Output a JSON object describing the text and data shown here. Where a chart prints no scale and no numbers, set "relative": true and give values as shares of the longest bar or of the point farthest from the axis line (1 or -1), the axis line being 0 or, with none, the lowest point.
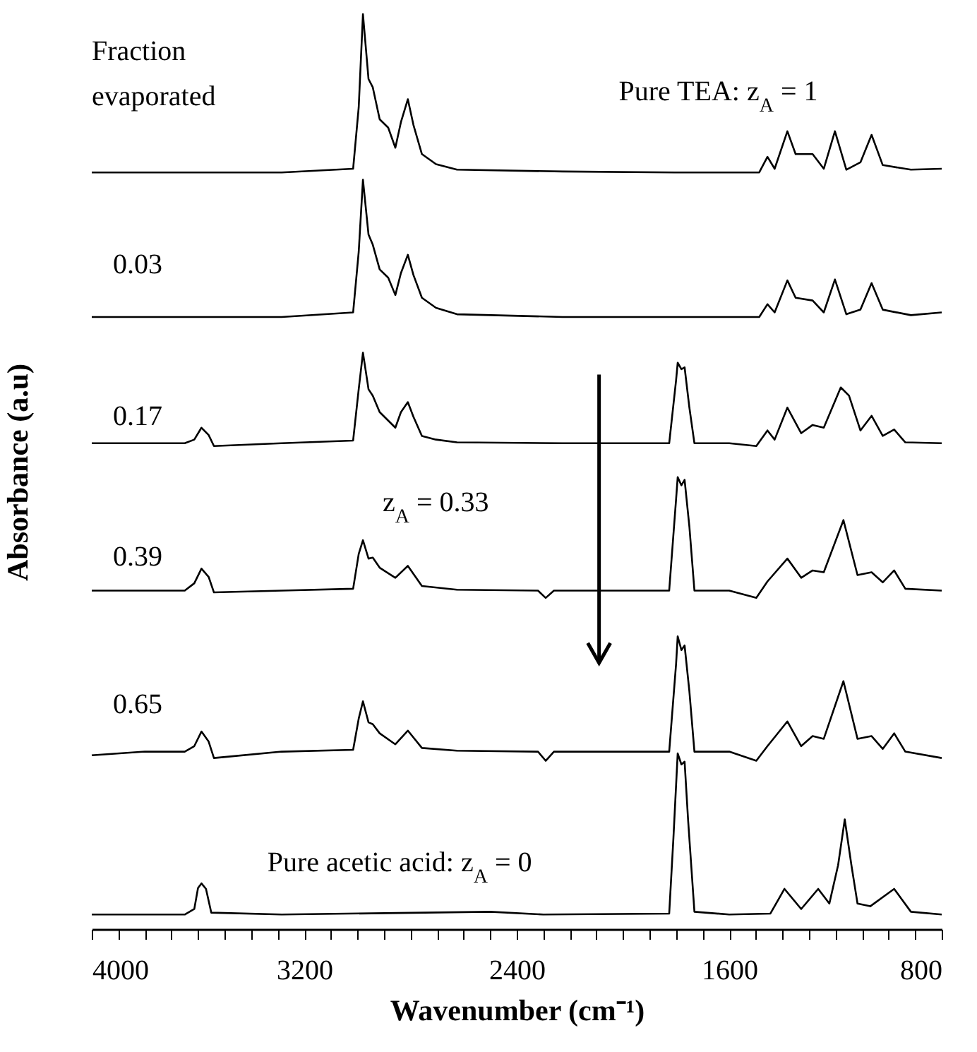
{
  "chart_data": {
    "type": "line",
    "relative": true,
    "xlabel": "Wavenumber (cm⁻¹)",
    "ylabel": "Absorbance  (a.u)",
    "xlim": [
      4000,
      800
    ],
    "xticks": [
      4000,
      {
        "value": 3900,
        "label": null
      },
      {
        "value": 3800,
        "label": null
      },
      {
        "value": 3700,
        "label": null
      },
      {
        "value": 3600,
        "label": null
      },
      {
        "value": 3500,
        "label": null
      },
      {
        "value": 3400,
        "label": null
      },
      {
        "value": 3300,
        "label": null
      },
      3200,
      {
        "value": 3100,
        "label": null
      },
      {
        "value": 3000,
        "label": null
      },
      {
        "value": 2900,
        "label": null
      },
      {
        "value": 2800,
        "label": null
      },
      {
        "value": 2700,
        "label": null
      },
      {
        "value": 2600,
        "label": null
      },
      {
        "value": 2500,
        "label": null
      },
      2400,
      {
        "value": 2300,
        "label": null
      },
      {
        "value": 2200,
        "label": null
      },
      {
        "value": 2100,
        "label": null
      },
      {
        "value": 2000,
        "label": null
      },
      {
        "value": 1900,
        "label": null
      },
      {
        "value": 1800,
        "label": null
      },
      {
        "value": 1700,
        "label": null
      },
      1600,
      {
        "value": 1500,
        "label": null
      },
      {
        "value": 1400,
        "label": null
      },
      {
        "value": 1300,
        "label": null
      },
      {
        "value": 1200,
        "label": null
      },
      {
        "value": 1100,
        "label": null
      },
      {
        "value": 1000,
        "label": null
      },
      {
        "value": 900,
        "label": null
      },
      800
    ],
    "annotations": [
      "Fraction evaporated",
      "z$_{A}$ = 0.33"
    ],
    "series": [
      {
        "name": "Pure TEA: z$_{A}$ = 1",
        "color": "#000000",
        "x": [
          4000,
          3285,
          3016,
          2995,
          2979,
          2958,
          2942,
          2916,
          2884,
          2857,
          2836,
          2810,
          2789,
          2757,
          2704,
          2625,
          2228,
          1805,
          1487,
          1456,
          1429,
          1381,
          1350,
          1286,
          1244,
          1202,
          1159,
          1106,
          1064,
          1022,
          916,
          800
        ],
        "values": [
          0.827,
          0.827,
          0.831,
          0.898,
          1.0,
          0.929,
          0.92,
          0.885,
          0.876,
          0.854,
          0.882,
          0.907,
          0.879,
          0.847,
          0.836,
          0.83,
          0.828,
          0.827,
          0.827,
          0.844,
          0.831,
          0.872,
          0.847,
          0.847,
          0.831,
          0.872,
          0.83,
          0.838,
          0.868,
          0.835,
          0.83,
          0.831
        ]
      },
      {
        "name": "0.03",
        "color": "#000000",
        "x": [
          4000,
          3285,
          3016,
          2995,
          2979,
          2958,
          2942,
          2916,
          2884,
          2857,
          2836,
          2810,
          2789,
          2757,
          2704,
          2625,
          2228,
          1805,
          1487,
          1456,
          1429,
          1381,
          1350,
          1286,
          1244,
          1202,
          1159,
          1106,
          1064,
          1022,
          916,
          800
        ],
        "values": [
          0.669,
          0.669,
          0.674,
          0.74,
          0.819,
          0.759,
          0.748,
          0.721,
          0.712,
          0.693,
          0.717,
          0.737,
          0.715,
          0.69,
          0.679,
          0.672,
          0.669,
          0.669,
          0.669,
          0.683,
          0.674,
          0.709,
          0.69,
          0.687,
          0.674,
          0.71,
          0.672,
          0.677,
          0.706,
          0.677,
          0.671,
          0.674
        ]
      },
      {
        "name": "0.17",
        "color": "#000000",
        "x": [
          4000,
          3650,
          3614,
          3587,
          3560,
          3540,
          3285,
          3016,
          2995,
          2979,
          2958,
          2942,
          2916,
          2857,
          2836,
          2810,
          2789,
          2757,
          2704,
          2625,
          2228,
          1826,
          1800,
          1794,
          1780,
          1768,
          1750,
          1731,
          1600,
          1498,
          1456,
          1429,
          1381,
          1329,
          1286,
          1244,
          1180,
          1149,
          1106,
          1064,
          1022,
          979,
          937,
          800
        ],
        "values": [
          0.531,
          0.531,
          0.535,
          0.548,
          0.54,
          0.528,
          0.531,
          0.534,
          0.59,
          0.63,
          0.59,
          0.583,
          0.565,
          0.548,
          0.565,
          0.576,
          0.56,
          0.539,
          0.535,
          0.532,
          0.531,
          0.531,
          0.6,
          0.619,
          0.612,
          0.614,
          0.57,
          0.531,
          0.531,
          0.528,
          0.545,
          0.535,
          0.57,
          0.542,
          0.551,
          0.548,
          0.592,
          0.583,
          0.545,
          0.561,
          0.539,
          0.546,
          0.532,
          0.531
        ]
      },
      {
        "name": "0.39",
        "color": "#000000",
        "x": [
          4000,
          3650,
          3614,
          3587,
          3560,
          3540,
          3285,
          3016,
          2995,
          2979,
          2958,
          2942,
          2916,
          2857,
          2810,
          2757,
          2625,
          2320,
          2291,
          2260,
          1826,
          1800,
          1794,
          1780,
          1768,
          1750,
          1731,
          1600,
          1498,
          1456,
          1381,
          1329,
          1286,
          1244,
          1170,
          1117,
          1064,
          1022,
          979,
          937,
          800
        ],
        "values": [
          0.37,
          0.37,
          0.378,
          0.394,
          0.385,
          0.368,
          0.37,
          0.372,
          0.41,
          0.425,
          0.405,
          0.406,
          0.395,
          0.384,
          0.397,
          0.375,
          0.371,
          0.37,
          0.362,
          0.37,
          0.37,
          0.47,
          0.494,
          0.485,
          0.491,
          0.44,
          0.37,
          0.37,
          0.362,
          0.38,
          0.405,
          0.384,
          0.392,
          0.39,
          0.447,
          0.387,
          0.39,
          0.379,
          0.392,
          0.372,
          0.37
        ]
      },
      {
        "name": "0.65",
        "color": "#000000",
        "x": [
          4000,
          3800,
          3650,
          3614,
          3587,
          3560,
          3540,
          3285,
          3016,
          2995,
          2979,
          2958,
          2942,
          2916,
          2857,
          2810,
          2757,
          2625,
          2320,
          2291,
          2260,
          1826,
          1800,
          1794,
          1780,
          1768,
          1750,
          1731,
          1600,
          1498,
          1456,
          1381,
          1329,
          1286,
          1244,
          1170,
          1117,
          1064,
          1022,
          979,
          937,
          800
        ],
        "values": [
          0.19,
          0.194,
          0.194,
          0.2,
          0.216,
          0.205,
          0.187,
          0.194,
          0.196,
          0.23,
          0.249,
          0.226,
          0.224,
          0.214,
          0.202,
          0.217,
          0.198,
          0.195,
          0.194,
          0.184,
          0.194,
          0.194,
          0.29,
          0.32,
          0.305,
          0.31,
          0.26,
          0.194,
          0.194,
          0.184,
          0.2,
          0.227,
          0.2,
          0.211,
          0.208,
          0.271,
          0.208,
          0.211,
          0.197,
          0.214,
          0.194,
          0.187
        ]
      },
      {
        "name": "Pure acetic acid: z$_{A}$ = 0",
        "color": "#000000",
        "x": [
          4000,
          3650,
          3614,
          3600,
          3587,
          3570,
          3550,
          3285,
          2500,
          2300,
          1826,
          1810,
          1794,
          1780,
          1768,
          1755,
          1731,
          1600,
          1445,
          1392,
          1329,
          1265,
          1223,
          1190,
          1165,
          1140,
          1117,
          1069,
          979,
          916,
          800
        ],
        "values": [
          0.016,
          0.016,
          0.022,
          0.045,
          0.05,
          0.044,
          0.018,
          0.016,
          0.019,
          0.016,
          0.017,
          0.1,
          0.192,
          0.18,
          0.183,
          0.12,
          0.019,
          0.016,
          0.017,
          0.044,
          0.022,
          0.044,
          0.028,
          0.07,
          0.12,
          0.07,
          0.028,
          0.025,
          0.044,
          0.019,
          0.016
        ]
      }
    ]
  }
}
